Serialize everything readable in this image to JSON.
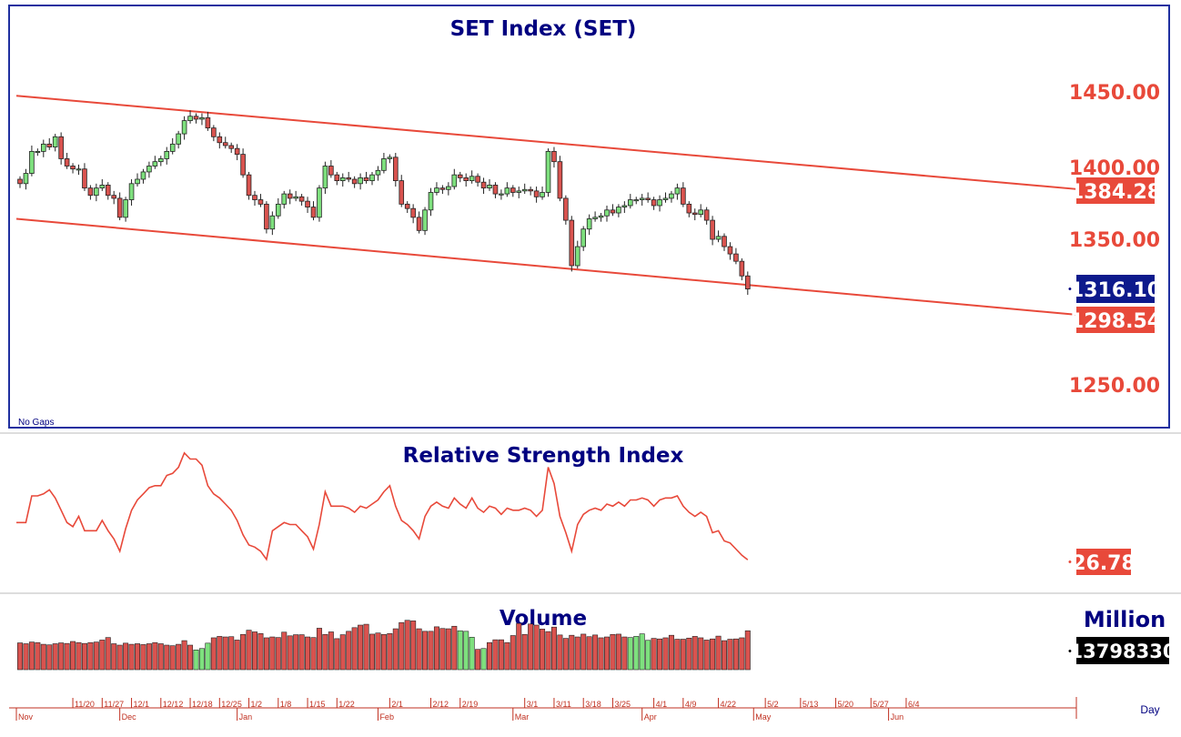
{
  "chart_data": [
    {
      "type": "candlestick",
      "title": "SET Index (SET)",
      "note": "No Gaps",
      "y_ticks": [
        "1450.00",
        "1400.00",
        "1350.00",
        "1250.00"
      ],
      "ylim": [
        1220,
        1495
      ],
      "channel": {
        "upper": {
          "start": 1448,
          "end": 1384.28
        },
        "lower": {
          "start": 1364,
          "end": 1298.54
        }
      },
      "labels": {
        "channel_upper": "1384.28",
        "last": "1316.10",
        "channel_lower": "1298.54"
      },
      "close": [
        1388,
        1395,
        1410,
        1410,
        1415,
        1413,
        1420,
        1405,
        1400,
        1398,
        1398,
        1385,
        1380,
        1385,
        1387,
        1380,
        1378,
        1365,
        1377,
        1388,
        1391,
        1396,
        1400,
        1403,
        1405,
        1410,
        1415,
        1422,
        1431,
        1434,
        1432,
        1433,
        1426,
        1420,
        1416,
        1414,
        1412,
        1408,
        1394,
        1380,
        1377,
        1374,
        1357,
        1366,
        1374,
        1381,
        1378,
        1379,
        1376,
        1372,
        1365,
        1385,
        1400,
        1394,
        1390,
        1392,
        1391,
        1388,
        1392,
        1390,
        1394,
        1397,
        1405,
        1406,
        1390,
        1374,
        1371,
        1365,
        1356,
        1370,
        1382,
        1385,
        1384,
        1386,
        1394,
        1392,
        1390,
        1393,
        1389,
        1385,
        1387,
        1381,
        1381,
        1385,
        1382,
        1383,
        1384,
        1383,
        1379,
        1382,
        1410,
        1403,
        1378,
        1363,
        1332,
        1345,
        1357,
        1364,
        1365,
        1366,
        1370,
        1368,
        1372,
        1373,
        1377,
        1377,
        1378,
        1377,
        1373,
        1377,
        1378,
        1381,
        1385,
        1374,
        1368,
        1367,
        1370,
        1363,
        1350,
        1352,
        1345,
        1340,
        1335,
        1325,
        1316.1
      ],
      "rsi": {
        "title": "Relative Strength Index",
        "label": "26.78",
        "ylim": [
          0,
          100
        ],
        "values": [
          45,
          45,
          58,
          58,
          59,
          61,
          57,
          51,
          45,
          43,
          48,
          41,
          41,
          41,
          46,
          41,
          37,
          31,
          42,
          51,
          56,
          59,
          62,
          63,
          63,
          68,
          69,
          72,
          79,
          76,
          76,
          73,
          63,
          59,
          57,
          54,
          51,
          46,
          39,
          34,
          33,
          31,
          27,
          41,
          43,
          45,
          44,
          44,
          41,
          38,
          32,
          44,
          60,
          53,
          53,
          53,
          52,
          50,
          53,
          52,
          54,
          56,
          60,
          63,
          53,
          46,
          44,
          41,
          37,
          48,
          53,
          55,
          53,
          52,
          57,
          54,
          52,
          57,
          52,
          50,
          53,
          52,
          49,
          52,
          51,
          51,
          52,
          51,
          48,
          51,
          72,
          64,
          48,
          40,
          31,
          44,
          49,
          51,
          52,
          51,
          54,
          53,
          55,
          53,
          56,
          56,
          57,
          56,
          53,
          56,
          57,
          57,
          58,
          53,
          50,
          48,
          50,
          48,
          40,
          41,
          36,
          35,
          32,
          29,
          26.78
        ]
      },
      "volume": {
        "title": "Volume",
        "unit": "Million",
        "label": "13798330",
        "values": [
          9.5,
          9.2,
          9.8,
          9.6,
          9,
          8.8,
          9.2,
          9.5,
          9.3,
          10,
          9.6,
          9.3,
          9.6,
          9.8,
          10.5,
          11.4,
          9.2,
          8.7,
          9.4,
          9,
          9.2,
          8.9,
          9.2,
          9.6,
          9.2,
          8.7,
          8.5,
          9,
          10.3,
          8.7,
          7,
          7.5,
          9.4,
          11.3,
          11.8,
          11.6,
          11.7,
          10.5,
          12.5,
          14,
          13.4,
          12.8,
          11.3,
          11.6,
          11.4,
          13.3,
          12,
          12.4,
          12.4,
          11.6,
          11.4,
          14.7,
          12.5,
          13.4,
          11,
          12.4,
          13.6,
          14.9,
          15.8,
          16.1,
          12.6,
          13,
          12.5,
          12.8,
          14.5,
          16.7,
          17.5,
          17.3,
          14.5,
          13.6,
          13.6,
          15.2,
          14.6,
          14.5,
          15.4,
          13.8,
          13.6,
          11.5,
          7.2,
          7.5,
          9.6,
          10.6,
          10.6,
          9.6,
          12.1,
          16.4,
          12.5,
          16.2,
          15.8,
          14.4,
          13.5,
          15.1,
          12.3,
          11.1,
          12.2,
          11.6,
          12.6,
          11.7,
          12.3,
          11.3,
          11.6,
          12.5,
          12.6,
          11.6,
          11.4,
          11.8,
          12.7,
          10.4,
          11.1,
          10.9,
          11.3,
          12.2,
          10.8,
          10.8,
          11.2,
          11.8,
          11.3,
          10.5,
          10.9,
          11.9,
          10.3,
          10.8,
          10.9,
          11.3,
          13.8
        ],
        "bull": [
          30,
          31,
          32,
          75,
          76,
          77,
          79,
          104,
          105,
          106,
          107
        ]
      },
      "x_axis": {
        "day_ticks": [
          {
            "i": 9,
            "t": "11/20"
          },
          {
            "i": 14,
            "t": "11/27"
          },
          {
            "i": 19,
            "t": "12/1"
          },
          {
            "i": 24,
            "t": "12/12"
          },
          {
            "i": 29,
            "t": "12/18"
          },
          {
            "i": 34,
            "t": "12/25"
          },
          {
            "i": 39,
            "t": "1/2"
          },
          {
            "i": 44,
            "t": "1/8"
          },
          {
            "i": 49,
            "t": "1/15"
          },
          {
            "i": 54,
            "t": "1/22"
          },
          {
            "i": 63,
            "t": "2/1"
          },
          {
            "i": 70,
            "t": "2/12"
          },
          {
            "i": 75,
            "t": "2/19"
          },
          {
            "i": 86,
            "t": "3/1"
          },
          {
            "i": 91,
            "t": "3/11"
          },
          {
            "i": 96,
            "t": "3/18"
          },
          {
            "i": 101,
            "t": "3/25"
          },
          {
            "i": 108,
            "t": "4/1"
          },
          {
            "i": 113,
            "t": "4/9"
          },
          {
            "i": 119,
            "t": "4/22"
          },
          {
            "i": 127,
            "t": "5/2"
          },
          {
            "i": 133,
            "t": "5/13"
          },
          {
            "i": 139,
            "t": "5/20"
          },
          {
            "i": 145,
            "t": "5/27"
          },
          {
            "i": 151,
            "t": "6/4"
          }
        ],
        "month_ticks": [
          {
            "i": 0,
            "t": "Nov"
          },
          {
            "i": 17,
            "t": "Dec"
          },
          {
            "i": 37,
            "t": "Jan"
          },
          {
            "i": 61,
            "t": "Feb"
          },
          {
            "i": 84,
            "t": "Mar"
          },
          {
            "i": 106,
            "t": "Apr"
          },
          {
            "i": 125,
            "t": "May"
          },
          {
            "i": 148,
            "t": "Jun"
          }
        ],
        "unit_label": "Day"
      }
    }
  ],
  "colors": {
    "up": "#7ee07e",
    "down": "#d9534f",
    "outline": "#222222",
    "channel": "#e8493a",
    "title": "#000080",
    "frame": "#1f2f9f",
    "last_tag": "#0d1a8c",
    "red_tag": "#e8493a",
    "volume_tag": "#000000"
  }
}
